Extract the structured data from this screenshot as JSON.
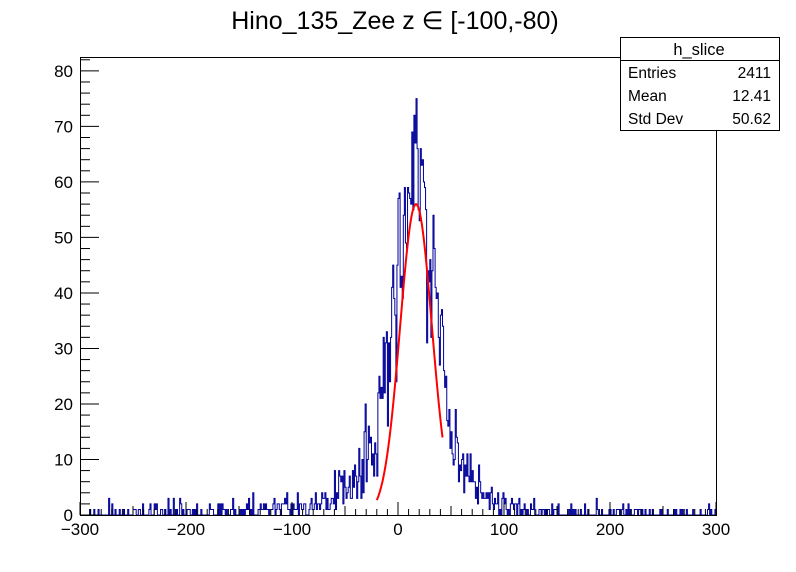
{
  "chart_data": {
    "type": "histogram",
    "title": "Hino_135_Zee z  ∈ [-100,-80)",
    "xlabel": "",
    "ylabel": "",
    "xlim": [
      -300,
      300
    ],
    "ylim": [
      0,
      82.5
    ],
    "x_ticks": [
      -300,
      -200,
      -100,
      0,
      100,
      200,
      300
    ],
    "y_ticks": [
      0,
      10,
      20,
      30,
      40,
      50,
      60,
      70,
      80
    ],
    "grid": false,
    "bin_width": 1,
    "histogram_color": "#000099",
    "fit_color": "#ff0000",
    "stats_box": {
      "name": "h_slice",
      "rows": [
        {
          "label": "Entries",
          "value": "2411"
        },
        {
          "label": "Mean",
          "value": "12.41"
        },
        {
          "label": "Std Dev",
          "value": "50.62"
        }
      ]
    },
    "histogram_envelope": {
      "x": [
        -300,
        -200,
        -100,
        -80,
        -60,
        -40,
        -20,
        -10,
        0,
        10,
        17,
        25,
        35,
        45,
        55,
        70,
        90,
        110,
        150,
        200,
        300
      ],
      "y": [
        0.3,
        0.5,
        1.5,
        2,
        3.5,
        6,
        14,
        30,
        46,
        55,
        67,
        58,
        42,
        22,
        10,
        5,
        2.5,
        1.3,
        0.6,
        0.4,
        0.3
      ]
    },
    "fit": {
      "function": "gaus",
      "constant": 56,
      "mean": 17,
      "sigma": 15,
      "range": [
        -20,
        42
      ]
    }
  }
}
